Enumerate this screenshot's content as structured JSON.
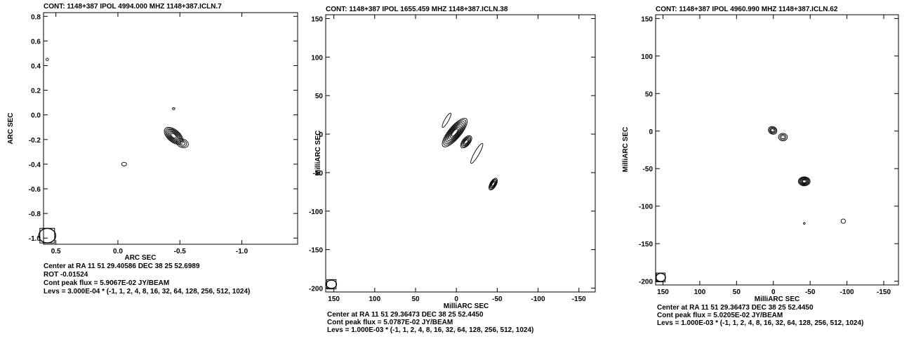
{
  "chart_data": [
    {
      "type": "contour",
      "title": "CONT: 1148+387  IPOL  4994.000 MHZ  1148+387.ICLN.7",
      "xlabel": "ARC SEC",
      "ylabel": "ARC SEC",
      "xlim": [
        0.6,
        -1.45
      ],
      "ylim": [
        -1.05,
        0.83
      ],
      "xticks": [
        0.5,
        0.0,
        -0.5,
        -1.0
      ],
      "xtick_labels": [
        "0.5",
        "0.0",
        "-0.5",
        "-1.0"
      ],
      "yticks": [
        0.8,
        0.6,
        0.4,
        0.2,
        0.0,
        -0.2,
        -0.4,
        -0.6,
        -0.8,
        -1.0
      ],
      "ytick_labels": [
        "0.8",
        "0.6",
        "0.4",
        "0.2",
        "0.0",
        "-0.2",
        "-0.4",
        "-0.6",
        "-0.8",
        "-1.0"
      ],
      "beam": {
        "x": 0.57,
        "y": -0.98,
        "major": 0.06,
        "minor": 0.05
      },
      "components": [
        {
          "x": -0.45,
          "y": -0.17,
          "a": 0.09,
          "b": 0.05,
          "angle": 40,
          "levels": 7
        },
        {
          "x": -0.52,
          "y": -0.23,
          "a": 0.05,
          "b": 0.035,
          "angle": 20,
          "levels": 3
        },
        {
          "x": -0.45,
          "y": 0.05,
          "a": 0.01,
          "b": 0.008,
          "angle": 0,
          "levels": 1
        },
        {
          "x": -0.05,
          "y": -0.4,
          "a": 0.02,
          "b": 0.015,
          "angle": 0,
          "levels": 1
        },
        {
          "x": 0.57,
          "y": 0.45,
          "a": 0.01,
          "b": 0.01,
          "angle": 0,
          "levels": 1
        }
      ],
      "footer": [
        "Center at RA 11 51 29.40586  DEC 38 25 52.6989",
        "ROT -0.01524",
        "Cont peak flux =  5.9067E-02 JY/BEAM",
        "Levs = 3.000E-04 * (-1, 1, 2, 4, 8, 16, 32, 64, 128, 256, 512, 1024)"
      ]
    },
    {
      "type": "contour",
      "title": "CONT: 1148+387  IPOL  1655.459 MHZ  1148+387.ICLN.38",
      "xlabel": "MilliARC SEC",
      "ylabel": "MilliARC SEC",
      "xlim": [
        160,
        -170
      ],
      "ylim": [
        -205,
        155
      ],
      "xticks": [
        150,
        100,
        50,
        0,
        -50,
        -100,
        -150
      ],
      "xtick_labels": [
        "150",
        "100",
        "50",
        "0",
        "-50",
        "-100",
        "-150"
      ],
      "yticks": [
        150,
        100,
        50,
        0,
        -50,
        -100,
        -150,
        -200
      ],
      "ytick_labels": [
        "150",
        "100",
        "50",
        "0",
        "-50",
        "-100",
        "-150",
        "-200"
      ],
      "beam": {
        "x": 153,
        "y": -195,
        "major": 5,
        "minor": 4
      },
      "components": [
        {
          "x": 2,
          "y": 2,
          "a": 22,
          "b": 8,
          "angle": -50,
          "levels": 8
        },
        {
          "x": -12,
          "y": -10,
          "a": 9,
          "b": 5,
          "angle": -50,
          "levels": 5
        },
        {
          "x": -25,
          "y": -25,
          "a": 14,
          "b": 3,
          "angle": -60,
          "levels": 1
        },
        {
          "x": 12,
          "y": 18,
          "a": 10,
          "b": 2.5,
          "angle": -60,
          "levels": 1
        },
        {
          "x": -45,
          "y": -65,
          "a": 8,
          "b": 4,
          "angle": -60,
          "levels": 5
        }
      ],
      "footer": [
        "Center at RA 11 51 29.36473  DEC 38 25 52.4450",
        "Cont peak flux =  5.0787E-02 JY/BEAM",
        "Levs = 1.000E-03 * (-1, 1, 2, 4, 8, 16, 32, 64, 128, 256, 512, 1024)"
      ]
    },
    {
      "type": "contour",
      "title": "CONT: 1148+387  IPOL  4960.990 MHZ  1148+387.ICLN.62",
      "xlabel": "MilliARC SEC",
      "ylabel": "MilliARC SEC",
      "xlim": [
        160,
        -170
      ],
      "ylim": [
        -205,
        155
      ],
      "xticks": [
        150,
        100,
        50,
        0,
        -50,
        -100,
        -150
      ],
      "xtick_labels": [
        "150",
        "100",
        "50",
        "0",
        "-50",
        "-100",
        "-150"
      ],
      "yticks": [
        150,
        100,
        50,
        0,
        -50,
        -100,
        -150,
        -200
      ],
      "ytick_labels": [
        "150",
        "100",
        "50",
        "0",
        "-50",
        "-100",
        "-150",
        "-200"
      ],
      "beam": {
        "x": 153,
        "y": -195,
        "major": 5,
        "minor": 4
      },
      "components": [
        {
          "x": 1,
          "y": 1,
          "a": 6,
          "b": 5,
          "angle": 30,
          "levels": 4
        },
        {
          "x": -13,
          "y": -8,
          "a": 6,
          "b": 5,
          "angle": 0,
          "levels": 3
        },
        {
          "x": -42,
          "y": -67,
          "a": 8,
          "b": 6,
          "angle": 0,
          "levels": 6
        },
        {
          "x": -95,
          "y": -120,
          "a": 3,
          "b": 3,
          "angle": 0,
          "levels": 1
        },
        {
          "x": -42,
          "y": -123,
          "a": 1.2,
          "b": 1.2,
          "angle": 0,
          "levels": 1
        }
      ],
      "footer": [
        "Center at RA 11 51 29.36473  DEC 38 25 52.4450",
        "Cont peak flux =  5.0205E-02 JY/BEAM",
        "Levs = 1.000E-03 * (-1, 1, 2, 4, 8, 16, 32, 64, 128, 256, 512, 1024)"
      ]
    }
  ]
}
